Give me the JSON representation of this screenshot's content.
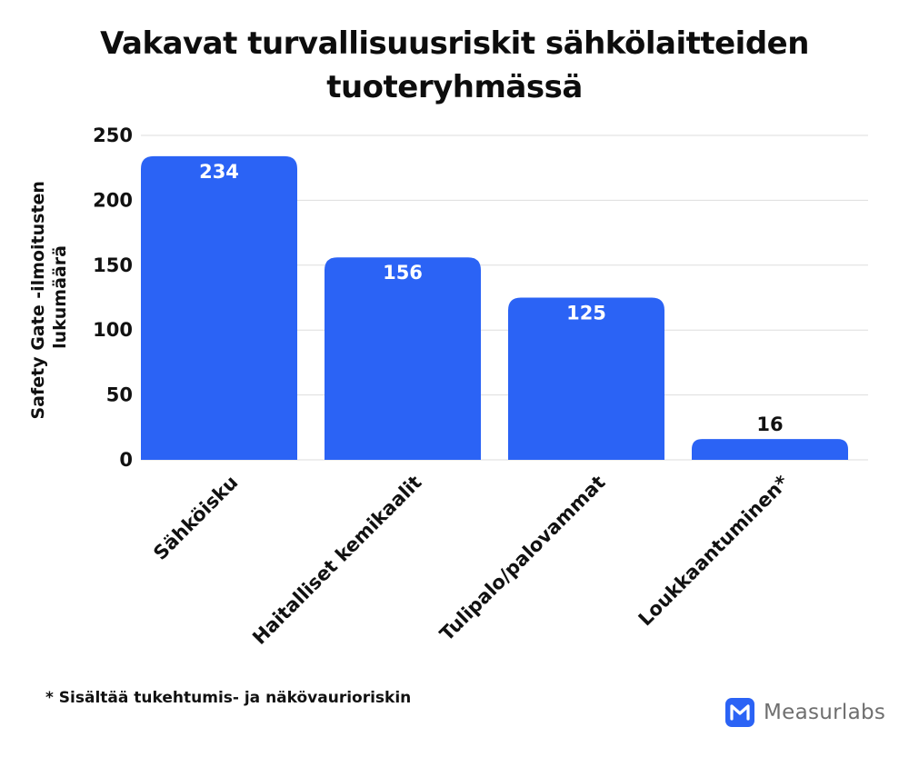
{
  "chart_data": {
    "type": "bar",
    "title_lines": [
      "Vakavat turvallisuusriskit sähkölaitteiden",
      "tuoteryhmässä"
    ],
    "ylabel_lines": [
      "Safety Gate -ilmoitusten",
      "lukumäärä"
    ],
    "xlabel": "",
    "categories": [
      "Sähköisku",
      "Haitalliset kemikaalit",
      "Tulipalo/palovammat",
      "Loukkaantuminen*"
    ],
    "values": [
      234,
      156,
      125,
      16
    ],
    "ylim": [
      0,
      250
    ],
    "yticks": [
      0,
      50,
      100,
      150,
      200,
      250
    ],
    "grid": true,
    "legend": "none",
    "bar_color": "#2b63f5",
    "grid_color": "#dddddd"
  },
  "footnote": "* Sisältää tukehtumis- ja näkövaurioriskin",
  "brand": {
    "name": "Measurlabs",
    "icon": "measurlabs-logo-icon",
    "color": "#2b63f5"
  }
}
